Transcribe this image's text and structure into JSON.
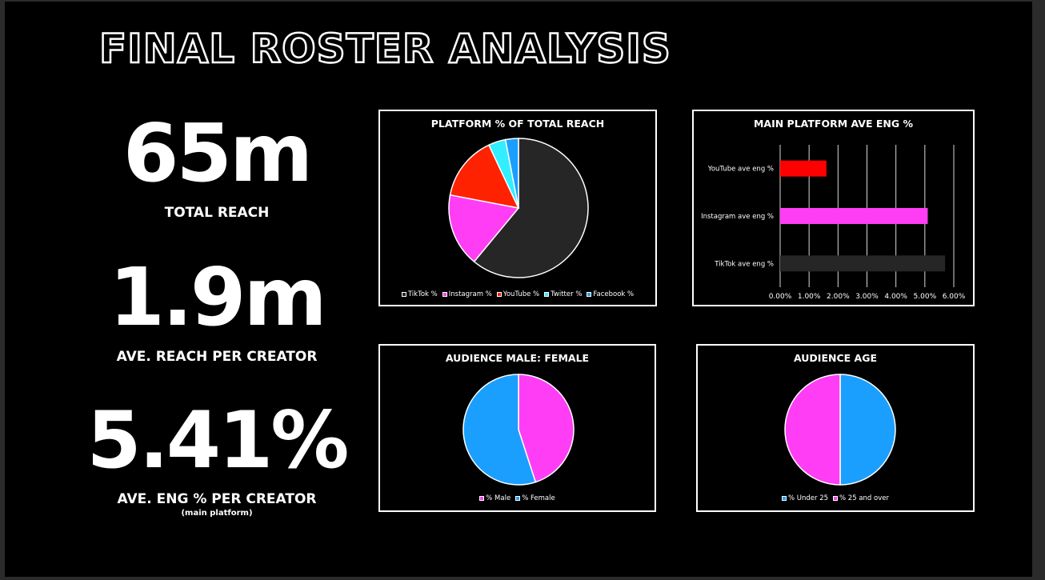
{
  "title": "FINAL ROSTER ANALYSIS",
  "stats": {
    "reach": {
      "value": "65m",
      "label": "TOTAL REACH"
    },
    "avg_reach": {
      "value": "1.9m",
      "label": "AVE. REACH PER CREATOR"
    },
    "avg_eng": {
      "value": "5.41%",
      "label": "AVE. ENG % PER CREATOR",
      "note": "(main platform)"
    }
  },
  "chart_data": [
    {
      "type": "pie",
      "title": "PLATFORM % OF TOTAL REACH",
      "categories": [
        "TikTok %",
        "Instagram %",
        "YouTube %",
        "Twitter %",
        "Facebook %"
      ],
      "values": [
        61,
        17,
        15,
        4,
        3
      ],
      "colors": [
        "#262626",
        "#ff3df5",
        "#ff2200",
        "#33eeff",
        "#1a9fff"
      ]
    },
    {
      "type": "bar",
      "orientation": "horizontal",
      "title": "MAIN PLATFORM AVE ENG %",
      "categories": [
        "YouTube ave eng %",
        "Instagram ave eng %",
        "TikTok ave eng %"
      ],
      "values": [
        1.6,
        5.1,
        5.7
      ],
      "colors": [
        "#ff0000",
        "#ff3df5",
        "#262626"
      ],
      "xlim": [
        0,
        6
      ],
      "ticks": [
        "0.00%",
        "1.00%",
        "2.00%",
        "3.00%",
        "4.00%",
        "5.00%",
        "6.00%"
      ],
      "grid": true
    },
    {
      "type": "pie",
      "title": "AUDIENCE MALE: FEMALE",
      "categories": [
        "% Male",
        "% Female"
      ],
      "values": [
        45,
        55
      ],
      "colors": [
        "#ff3df5",
        "#1a9fff"
      ]
    },
    {
      "type": "pie",
      "title": "AUDIENCE AGE",
      "categories": [
        "% Under 25",
        "% 25 and over"
      ],
      "values": [
        50,
        50
      ],
      "colors": [
        "#1a9fff",
        "#ff3df5"
      ]
    }
  ]
}
